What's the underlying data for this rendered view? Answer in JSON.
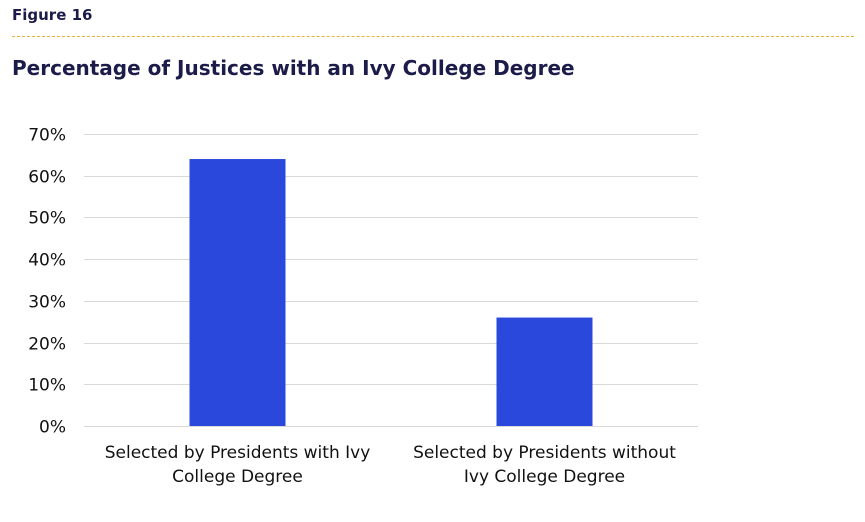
{
  "figure_label": "Figure 16",
  "colors": {
    "bar": "#2b48dc",
    "grid": "#d9d9d9",
    "divider": "#e2b23a",
    "title": "#1c1c4a"
  },
  "chart_data": {
    "type": "bar",
    "title": "Percentage of Justices with an Ivy College Degree",
    "xlabel": "",
    "ylabel": "",
    "categories": [
      "Selected by Presidents with Ivy College Degree",
      "Selected by Presidents without Ivy College Degree"
    ],
    "category_lines": [
      [
        "Selected by Presidents with Ivy",
        "College Degree"
      ],
      [
        "Selected by Presidents without",
        "Ivy College Degree"
      ]
    ],
    "values": [
      64,
      26
    ],
    "ylim": [
      0,
      70
    ],
    "yticks": [
      0,
      10,
      20,
      30,
      40,
      50,
      60,
      70
    ],
    "ytick_labels": [
      "0%",
      "10%",
      "20%",
      "30%",
      "40%",
      "50%",
      "60%",
      "70%"
    ],
    "value_unit": "%",
    "grid": true,
    "legend": "none"
  }
}
